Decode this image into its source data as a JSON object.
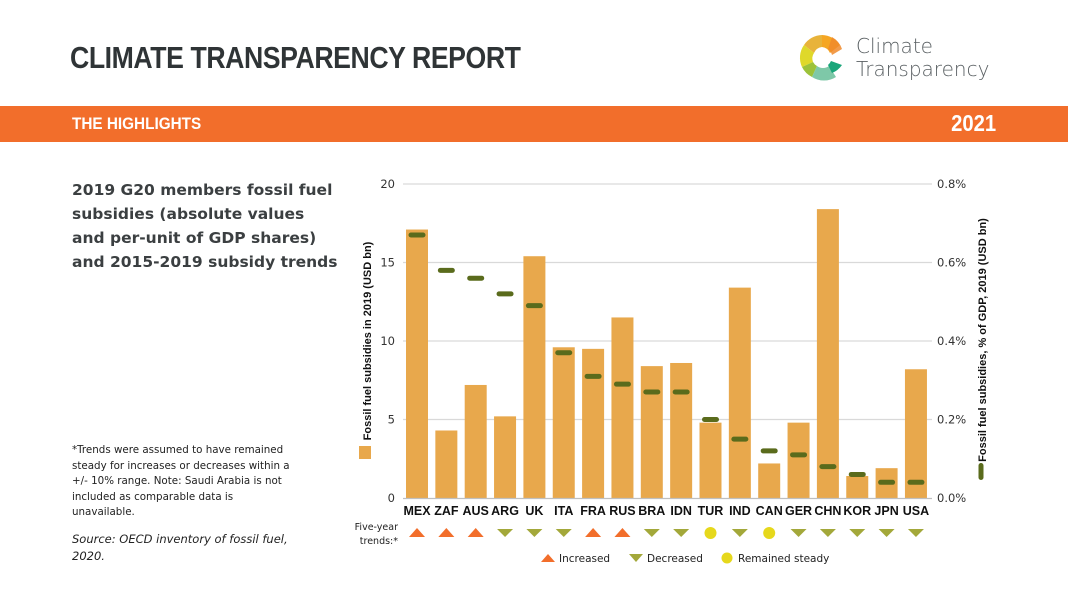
{
  "header": {
    "report_title": "CLIMATE TRANSPARENCY REPORT",
    "logo_line1": "Climate",
    "logo_line2": "Transparency",
    "band_label": "THE HIGHLIGHTS",
    "year": "2021"
  },
  "left_panel": {
    "heading": "2019 G20 members fossil fuel subsidies (absolute values and per-unit of GDP shares) and 2015-2019 subsidy trends",
    "footnote": "*Trends were assumed to have remained steady for increases or decreases within a +/- 10% range. Note: Saudi Arabia is not included as comparable data is unavailable.",
    "source": "Source: OECD inventory of fossil fuel, 2020."
  },
  "colors": {
    "band": "#f26e2b",
    "bar": "#e8a84c",
    "dash": "#5a6b1c",
    "increased": "#f26e2b",
    "decreased": "#a3a83a",
    "steady": "#e6d81c",
    "grid": "#d9d9d9"
  },
  "chart_data": {
    "type": "bar",
    "categories": [
      "MEX",
      "ZAF",
      "AUS",
      "ARG",
      "UK",
      "ITA",
      "FRA",
      "RUS",
      "BRA",
      "IDN",
      "TUR",
      "IND",
      "CAN",
      "GER",
      "CHN",
      "KOR",
      "JPN",
      "USA"
    ],
    "series": [
      {
        "name": "Fossil fuel subsidies in 2019 (USD bn)",
        "type": "bar",
        "axis": "left",
        "values": [
          17.1,
          4.3,
          7.2,
          5.2,
          15.4,
          9.6,
          9.5,
          11.5,
          8.4,
          8.6,
          4.8,
          13.4,
          2.2,
          4.8,
          18.4,
          1.4,
          1.9,
          8.2
        ]
      },
      {
        "name": "Fossil fuel subsidies, % of GDP, 2019 (USD bn)",
        "type": "marker",
        "axis": "right",
        "values": [
          0.67,
          0.58,
          0.56,
          0.52,
          0.49,
          0.37,
          0.31,
          0.29,
          0.27,
          0.27,
          0.2,
          0.15,
          0.12,
          0.11,
          0.08,
          0.06,
          0.04,
          0.04
        ]
      }
    ],
    "trends": [
      "increased",
      "increased",
      "increased",
      "decreased",
      "decreased",
      "decreased",
      "increased",
      "increased",
      "decreased",
      "decreased",
      "steady",
      "decreased",
      "steady",
      "decreased",
      "decreased",
      "decreased",
      "decreased",
      "decreased"
    ],
    "trends_label": [
      "Five-year",
      "trends:*"
    ],
    "ylabel": "Fossil fuel subsidies in 2019 (USD bn)",
    "ylabel_right": "Fossil fuel subsidies, % of GDP, 2019 (USD bn)",
    "ylim": [
      0,
      20
    ],
    "yticks": [
      0,
      5,
      10,
      15,
      20
    ],
    "ylim_right": [
      0,
      0.8
    ],
    "yticks_right": [
      "0.0%",
      "0.2%",
      "0.4%",
      "0.6%",
      "0.8%"
    ],
    "grid": true,
    "legend": [
      {
        "key": "increased",
        "label": "Increased"
      },
      {
        "key": "decreased",
        "label": "Decreased"
      },
      {
        "key": "steady",
        "label": "Remained steady"
      }
    ],
    "legend_position": "bottom"
  }
}
